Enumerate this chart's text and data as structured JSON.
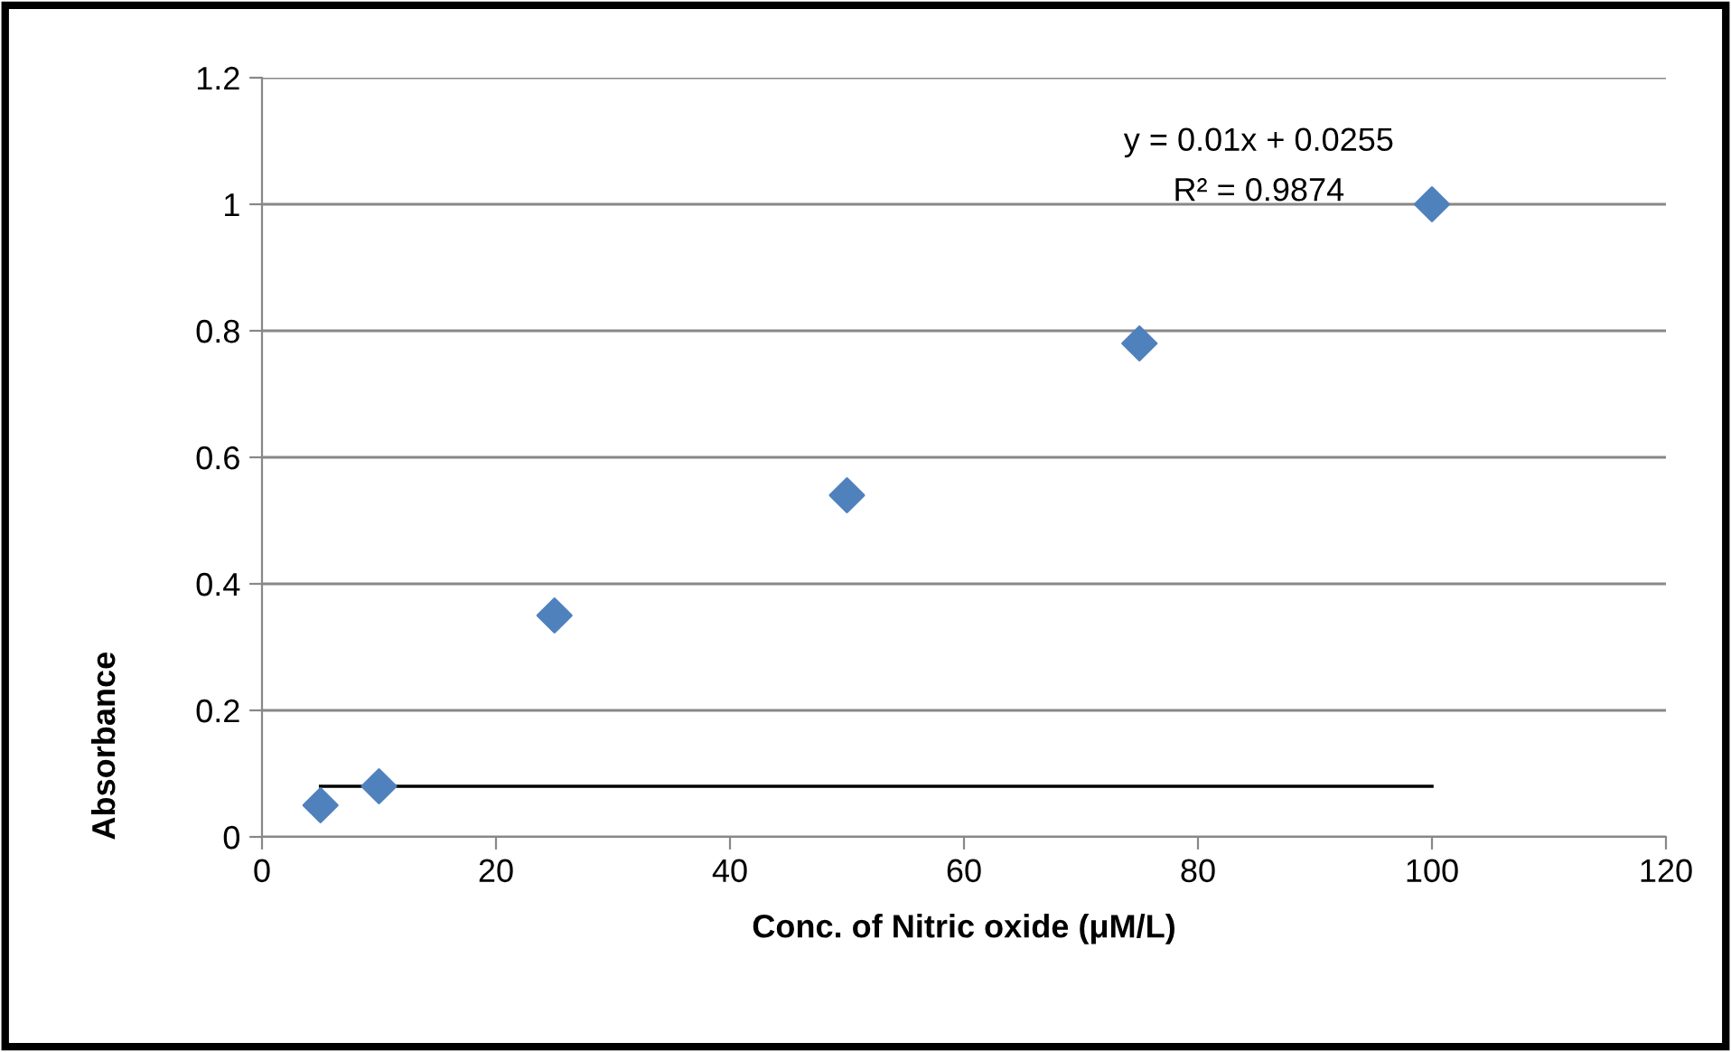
{
  "chart_data": {
    "type": "scatter",
    "xlabel": "Conc. of Nitric oxide (μM/L)",
    "ylabel": "Absorbance",
    "annotations": [
      "y = 0.01x + 0.0255",
      "R² = 0.9874"
    ],
    "x": [
      5,
      10,
      25,
      50,
      75,
      100
    ],
    "series": [
      {
        "color": "#4f81bd",
        "values": [
          0.05,
          0.08,
          0.35,
          0.54,
          0.78,
          1.0
        ],
        "marker": "diamond"
      },
      {
        "type": "line",
        "color": "#000000",
        "x": [
          5,
          100
        ],
        "values": [
          0.08,
          0.08
        ],
        "marker": "none",
        "line_style": "solid"
      }
    ],
    "xlim": [
      0,
      120
    ],
    "xticks": [
      0,
      20,
      40,
      60,
      80,
      100,
      120
    ],
    "ylim": [
      0,
      1.2
    ],
    "yticks": [
      0,
      0.2,
      0.4,
      0.6,
      0.8,
      1,
      1.2
    ],
    "grid": "y",
    "legend": false
  }
}
